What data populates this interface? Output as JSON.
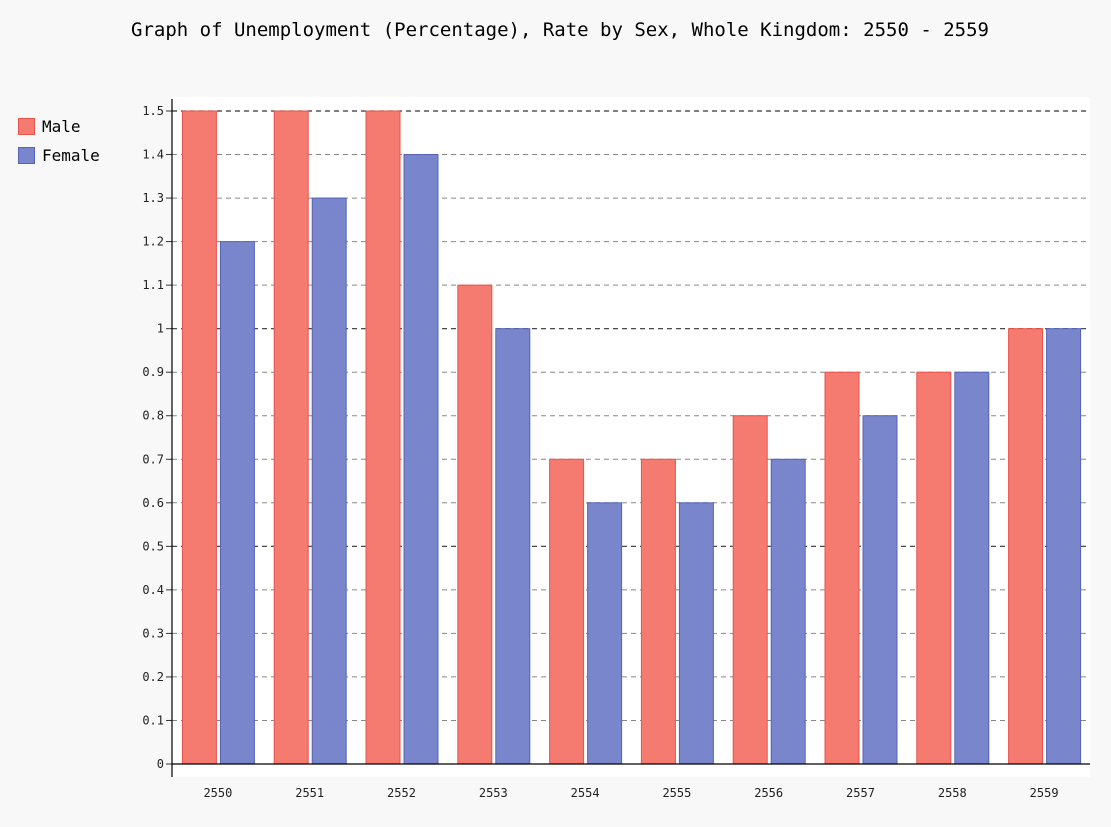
{
  "chart_data": {
    "type": "bar",
    "title": "Graph of Unemployment (Percentage), Rate by Sex, Whole Kingdom: 2550 - 2559",
    "xlabel": "",
    "ylabel": "",
    "categories": [
      "2550",
      "2551",
      "2552",
      "2553",
      "2554",
      "2555",
      "2556",
      "2557",
      "2558",
      "2559"
    ],
    "series": [
      {
        "name": "Male",
        "color": "#f57a6f",
        "border": "#e8534a",
        "values": [
          1.5,
          1.5,
          1.5,
          1.1,
          0.7,
          0.7,
          0.8,
          0.9,
          0.9,
          1.0
        ]
      },
      {
        "name": "Female",
        "color": "#7986cb",
        "border": "#5563b8",
        "values": [
          1.2,
          1.3,
          1.4,
          1.0,
          0.6,
          0.6,
          0.7,
          0.8,
          0.9,
          1.0
        ]
      }
    ],
    "ylim": [
      0,
      1.5
    ],
    "yticks": [
      "0",
      "0.1",
      "0.2",
      "0.3",
      "0.4",
      "0.5",
      "0.6",
      "0.7",
      "0.8",
      "0.9",
      "1",
      "1.1",
      "1.2",
      "1.3",
      "1.4",
      "1.5"
    ],
    "major_ticks": [
      "0.5",
      "1",
      "1.5"
    ],
    "grid": true,
    "legend_position": "top-left"
  }
}
